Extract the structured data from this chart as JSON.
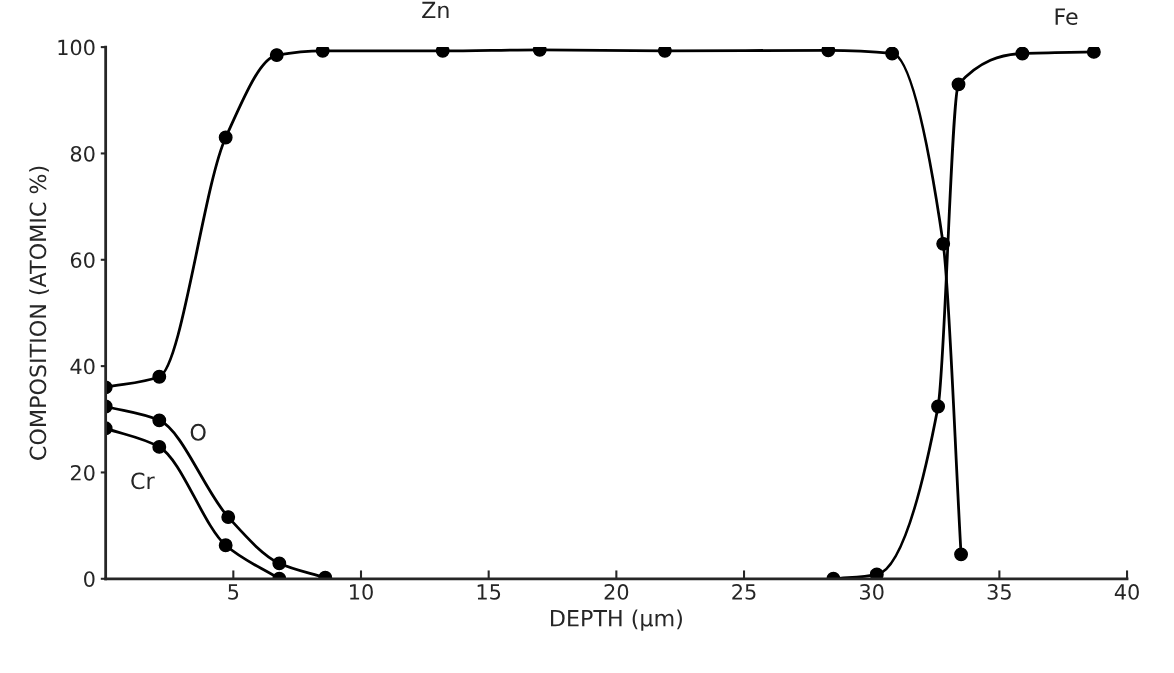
{
  "chart_data": {
    "type": "line",
    "xlabel": "DEPTH (μm)",
    "ylabel": "COMPOSITION (ATOMIC %)",
    "xlim": [
      0,
      40
    ],
    "ylim": [
      0,
      100
    ],
    "xticks": [
      5,
      10,
      15,
      20,
      25,
      30,
      35,
      40
    ],
    "yticks": [
      0,
      20,
      40,
      60,
      80,
      100
    ],
    "marker": "circle",
    "line_style": "solid",
    "grid": false,
    "legend": false,
    "series": [
      {
        "name": "Zn",
        "color": "#000000",
        "x": [
          0,
          2.1,
          4.7,
          6.7,
          8.5,
          13.2,
          17.0,
          21.9,
          28.3,
          30.8,
          32.8,
          33.5
        ],
        "values": [
          36,
          38,
          83,
          98.5,
          99.3,
          99.3,
          99.5,
          99.3,
          99.4,
          98.8,
          63,
          4.6
        ]
      },
      {
        "name": "Fe",
        "color": "#000000",
        "x": [
          28.5,
          30.2,
          32.6,
          33.4,
          35.9,
          38.7
        ],
        "values": [
          0,
          0.8,
          32.4,
          93,
          98.8,
          99.1
        ]
      },
      {
        "name": "O",
        "color": "#000000",
        "x": [
          0,
          2.1,
          4.8,
          6.8,
          8.6
        ],
        "values": [
          32.4,
          29.8,
          11.6,
          2.9,
          0.2
        ]
      },
      {
        "name": "Cr",
        "color": "#000000",
        "x": [
          0,
          2.1,
          4.7,
          6.8
        ],
        "values": [
          28.3,
          24.8,
          6.3,
          0
        ]
      }
    ]
  }
}
